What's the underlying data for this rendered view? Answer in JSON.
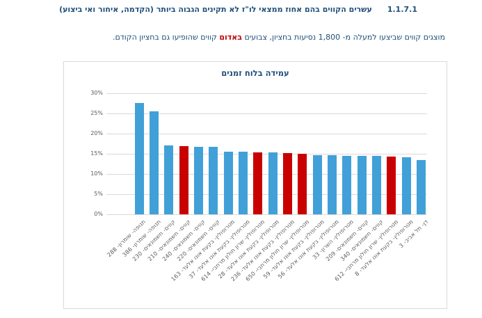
{
  "heading": {
    "number": "1.1.7.1",
    "title": "עשרים הקווים בהם אחוז ממצאי לו\"ז לא תקינים הגבוה ביותר (הקדמה, איחור ואי ביצוע)"
  },
  "paragraph": {
    "before_red": "מוצגים קווים שביצעו למעלה מ- 1,800 נסיעות בחציון, צבועים ",
    "red_word": "באדום",
    "after_red": " קווים שהופיעו גם בחציון הקודם."
  },
  "chart_data": {
    "type": "bar",
    "title": "עמידה בלוח זמנים",
    "xlabel": "",
    "ylabel": "",
    "ylim": [
      0,
      30
    ],
    "ytick_step": 5,
    "ytick_labels": [
      "0%",
      "5%",
      "10%",
      "15%",
      "20%",
      "25%",
      "30%"
    ],
    "grid": true,
    "legend": false,
    "colors": {
      "default_bar": "#42A0D8",
      "highlight_bar": "#C90000",
      "title": "#1F4E79",
      "axis_text": "#595959",
      "gridline": "#D9D9D9"
    },
    "categories": [
      "תנופה- שומרון- 288",
      "תנופה- שומרון- 386",
      "קווים- חשמונאים- 230",
      "קווים- חשמונאים- 210",
      "קווים- חשמונאים- 240",
      "קווים- חשמונאים- 220",
      "מטרופולין- בקעת אונו אלעד- 163",
      "מטרופולין- בקעת אונו אלעד- 37",
      "מטרופולין- שרון חולון מרחבי- 614",
      "מטרופולין- בקעת אונו אלעד- 28",
      "מטרופולין- בקעת אונו אלעד- 236",
      "מטרופולין- שרון חולון מרחבי- 650",
      "מטרופולין- בקעת אונו אלעד- 59",
      "מטרופולין- בקעת אונו אלעד- 56",
      "מטרופולין- השרון- 33",
      "קווים- חשמונאים- 209",
      "קווים- חשמונאים- 340",
      "מטרופולין- שרון חולון מרחבי- 612",
      "מטרופולין- בקעת אונו אלעד- 8",
      "דן- תל אביב- 3"
    ],
    "values": [
      27.6,
      25.5,
      17.0,
      16.9,
      16.8,
      16.7,
      15.6,
      15.5,
      15.4,
      15.3,
      15.2,
      15.0,
      14.7,
      14.6,
      14.5,
      14.4,
      14.4,
      14.3,
      14.2,
      13.4
    ],
    "highlighted": [
      false,
      false,
      false,
      true,
      false,
      false,
      false,
      false,
      true,
      false,
      true,
      true,
      false,
      false,
      false,
      false,
      false,
      true,
      false,
      false
    ]
  }
}
